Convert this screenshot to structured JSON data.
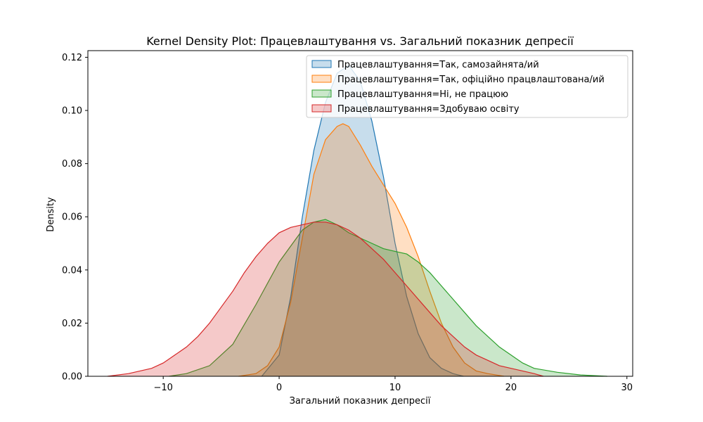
{
  "chart_data": {
    "type": "area",
    "title": "Kernel Density Plot: Працевлаштування vs. Загальний показник депресії",
    "xlabel": "Загальний показник депресії",
    "ylabel": "Density",
    "xlim": [
      -16.5,
      30.5
    ],
    "ylim": [
      0,
      0.1225
    ],
    "x_ticks": [
      -10,
      0,
      10,
      20,
      30
    ],
    "x_tick_labels": [
      "−10",
      "0",
      "10",
      "20",
      "30"
    ],
    "y_ticks": [
      0,
      0.02,
      0.04,
      0.06,
      0.08,
      0.1,
      0.12
    ],
    "y_tick_labels": [
      "0.00",
      "0.02",
      "0.04",
      "0.06",
      "0.08",
      "0.10",
      "0.12"
    ],
    "grid": false,
    "legend_position": "top-right",
    "series": [
      {
        "name": "Працевлаштування=Так, самозайнята/ий",
        "color": "#1f77b4",
        "x": [
          -1.5,
          0,
          1,
          2,
          3,
          4,
          5,
          6,
          7,
          8,
          9,
          10,
          11,
          12,
          13,
          14,
          15,
          15.9
        ],
        "y": [
          0,
          0.008,
          0.03,
          0.06,
          0.085,
          0.103,
          0.114,
          0.117,
          0.111,
          0.096,
          0.075,
          0.05,
          0.03,
          0.016,
          0.007,
          0.003,
          0.001,
          0
        ]
      },
      {
        "name": "Працевлаштування=Так, офіційно працвлаштована/ий",
        "color": "#ff7f0e",
        "x": [
          -3.5,
          -2,
          -1,
          0,
          1,
          2,
          3,
          4,
          5,
          5.5,
          6,
          7,
          8,
          9,
          10,
          11,
          12,
          13,
          14,
          15,
          16,
          17,
          18,
          19.4
        ],
        "y": [
          0,
          0.001,
          0.004,
          0.011,
          0.028,
          0.052,
          0.076,
          0.089,
          0.094,
          0.095,
          0.094,
          0.087,
          0.079,
          0.072,
          0.065,
          0.056,
          0.045,
          0.032,
          0.02,
          0.011,
          0.005,
          0.002,
          0.001,
          0
        ]
      },
      {
        "name": "Працевлаштування=Ні, не працюю",
        "color": "#2ca02c",
        "x": [
          -9.5,
          -8,
          -6,
          -4,
          -2,
          0,
          2,
          3,
          4,
          5,
          6,
          7,
          8,
          9,
          10,
          11,
          12,
          13,
          14,
          15,
          16,
          17,
          18,
          19,
          20,
          21,
          22,
          24,
          26,
          28.3
        ],
        "y": [
          0,
          0.001,
          0.004,
          0.012,
          0.027,
          0.043,
          0.055,
          0.058,
          0.059,
          0.057,
          0.054,
          0.052,
          0.05,
          0.048,
          0.047,
          0.046,
          0.043,
          0.039,
          0.034,
          0.029,
          0.024,
          0.019,
          0.015,
          0.011,
          0.008,
          0.005,
          0.003,
          0.0015,
          0.0005,
          0
        ]
      },
      {
        "name": "Працевлаштування=Здобуваю освіту",
        "color": "#d62728",
        "x": [
          -14.8,
          -13,
          -12,
          -11,
          -10,
          -9,
          -8,
          -7,
          -6,
          -5,
          -4,
          -3,
          -2,
          -1,
          0,
          1,
          2,
          3,
          4,
          5,
          6,
          7,
          8,
          9,
          10,
          11,
          12,
          13,
          14,
          15,
          16,
          17,
          18,
          19,
          20,
          21,
          22,
          22.8
        ],
        "y": [
          0,
          0.001,
          0.002,
          0.003,
          0.005,
          0.008,
          0.011,
          0.015,
          0.02,
          0.026,
          0.032,
          0.039,
          0.045,
          0.05,
          0.054,
          0.056,
          0.057,
          0.058,
          0.058,
          0.057,
          0.055,
          0.052,
          0.048,
          0.044,
          0.039,
          0.034,
          0.029,
          0.024,
          0.019,
          0.015,
          0.011,
          0.008,
          0.006,
          0.004,
          0.003,
          0.002,
          0.001,
          0
        ]
      }
    ]
  }
}
